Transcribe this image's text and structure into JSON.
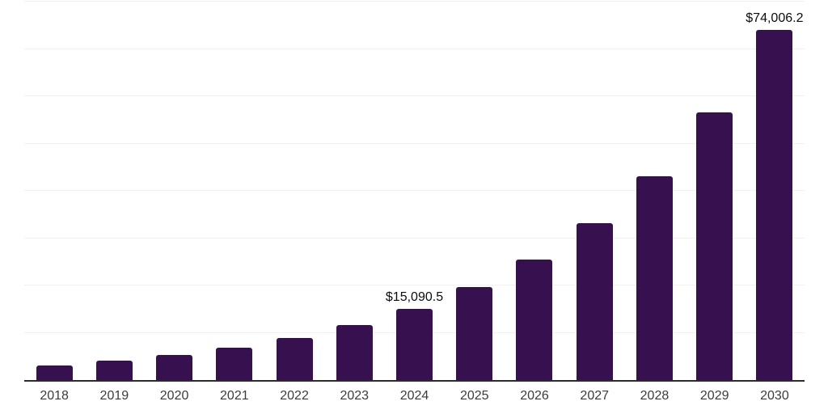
{
  "chart_data": {
    "type": "bar",
    "title": "",
    "xlabel": "",
    "ylabel": "",
    "categories": [
      "2018",
      "2019",
      "2020",
      "2021",
      "2022",
      "2023",
      "2024",
      "2025",
      "2026",
      "2027",
      "2028",
      "2029",
      "2030"
    ],
    "values": [
      3050,
      4050,
      5300,
      6840,
      8890,
      11620,
      15090.5,
      19660,
      25480,
      33170,
      43090,
      56600,
      74006.2
    ],
    "data_labels": [
      {
        "category": "2024",
        "text": "$15,090.5"
      },
      {
        "category": "2030",
        "text": "$74,006.2"
      }
    ],
    "ylim": [
      0,
      80000
    ],
    "gridline_step": 10000,
    "grid": true,
    "legend_position": "none",
    "colors": {
      "bar": "#37114F",
      "gridline": "#f1f1f1",
      "axis_line": "#2b2b2b",
      "x_tick_label": "#3c3c3c",
      "data_label": "#0d0d0d",
      "background": "#ffffff"
    }
  }
}
